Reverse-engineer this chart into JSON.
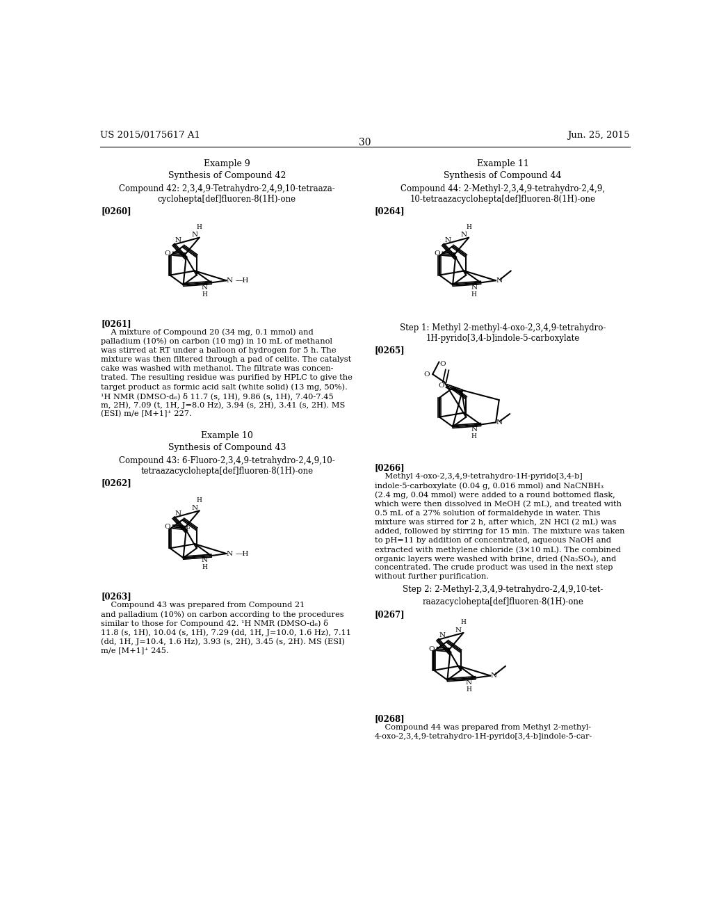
{
  "page_number": "30",
  "patent_number": "US 2015/0175617 A1",
  "patent_date": "Jun. 25, 2015",
  "background_color": "#ffffff",
  "text_color": "#000000"
}
